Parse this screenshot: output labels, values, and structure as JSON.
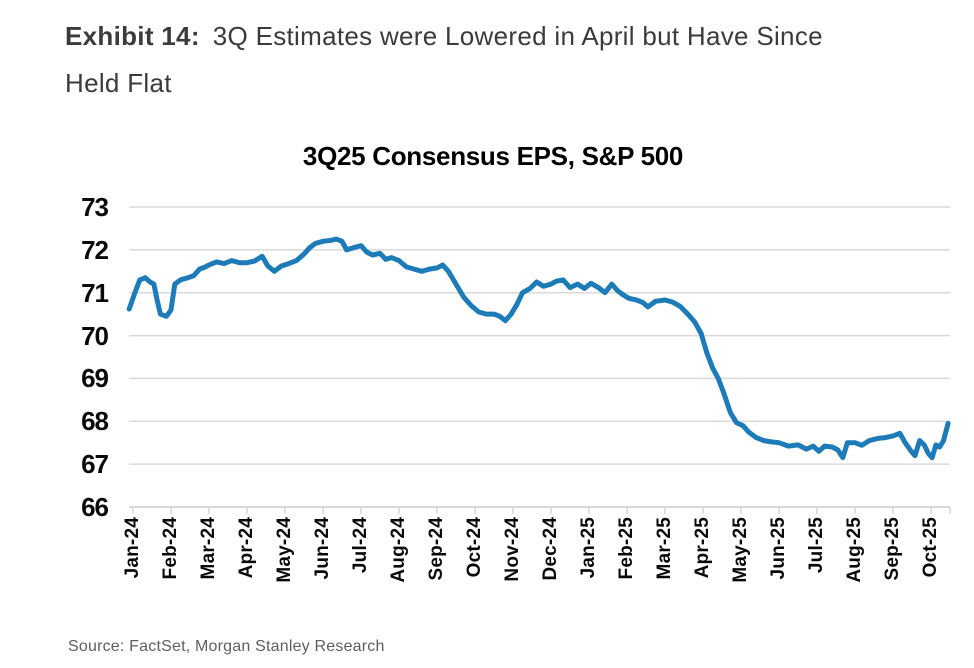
{
  "heading": {
    "label": "Exhibit 14:",
    "title": "3Q Estimates were Lowered in April but Have Since Held Flat",
    "title_lines": [
      "3Q Estimates were Lowered in April but Have Since",
      "Held Flat"
    ]
  },
  "source": "Source: FactSet, Morgan Stanley Research",
  "colors": {
    "line": "#1d7bb8",
    "grid": "#d9d9d9",
    "heading_text": "#3b3b39",
    "title_text": "#000000",
    "tick_text": "#0a0a0a",
    "source_text": "#5f5f5f"
  },
  "chart_data": {
    "type": "line",
    "title": "3Q25 Consensus EPS, S&P 500",
    "xlabel": "",
    "ylabel": "",
    "ylim": [
      66,
      73
    ],
    "y_ticks": [
      73,
      72,
      71,
      70,
      69,
      68,
      67,
      66
    ],
    "x_tick_labels": [
      "Jan-24",
      "Feb-24",
      "Mar-24",
      "Apr-24",
      "May-24",
      "Jun-24",
      "Jul-24",
      "Aug-24",
      "Sep-24",
      "Oct-24",
      "Nov-24",
      "Dec-24",
      "Jan-25",
      "Feb-25",
      "Mar-25",
      "Apr-25",
      "May-25",
      "Jun-25",
      "Jul-25",
      "Aug-25",
      "Sep-25",
      "Oct-25"
    ],
    "grid": "horizontal",
    "legend": "none",
    "series": [
      {
        "name": "3Q25 Consensus EPS, S&P 500",
        "color": "#1d7bb8",
        "x_unit": "months since Jan-24 tick",
        "points": [
          [
            -0.1,
            70.62
          ],
          [
            0.05,
            71.0
          ],
          [
            0.18,
            71.3
          ],
          [
            0.32,
            71.35
          ],
          [
            0.45,
            71.25
          ],
          [
            0.55,
            71.2
          ],
          [
            0.63,
            70.85
          ],
          [
            0.72,
            70.5
          ],
          [
            0.88,
            70.45
          ],
          [
            1.0,
            70.6
          ],
          [
            1.1,
            71.2
          ],
          [
            1.25,
            71.3
          ],
          [
            1.45,
            71.35
          ],
          [
            1.6,
            71.4
          ],
          [
            1.75,
            71.55
          ],
          [
            1.9,
            71.6
          ],
          [
            2.0,
            71.65
          ],
          [
            2.2,
            71.72
          ],
          [
            2.4,
            71.68
          ],
          [
            2.6,
            71.75
          ],
          [
            2.8,
            71.7
          ],
          [
            3.0,
            71.7
          ],
          [
            3.2,
            71.74
          ],
          [
            3.4,
            71.85
          ],
          [
            3.55,
            71.62
          ],
          [
            3.72,
            71.5
          ],
          [
            3.9,
            71.62
          ],
          [
            4.1,
            71.68
          ],
          [
            4.3,
            71.75
          ],
          [
            4.5,
            71.9
          ],
          [
            4.65,
            72.05
          ],
          [
            4.8,
            72.15
          ],
          [
            5.0,
            72.2
          ],
          [
            5.2,
            72.22
          ],
          [
            5.35,
            72.25
          ],
          [
            5.5,
            72.2
          ],
          [
            5.62,
            72.0
          ],
          [
            5.8,
            72.05
          ],
          [
            6.0,
            72.1
          ],
          [
            6.15,
            71.95
          ],
          [
            6.3,
            71.88
          ],
          [
            6.5,
            71.92
          ],
          [
            6.65,
            71.78
          ],
          [
            6.8,
            71.82
          ],
          [
            7.0,
            71.75
          ],
          [
            7.2,
            71.6
          ],
          [
            7.4,
            71.55
          ],
          [
            7.6,
            71.5
          ],
          [
            7.8,
            71.55
          ],
          [
            8.0,
            71.58
          ],
          [
            8.15,
            71.65
          ],
          [
            8.3,
            71.5
          ],
          [
            8.5,
            71.2
          ],
          [
            8.7,
            70.9
          ],
          [
            8.9,
            70.7
          ],
          [
            9.1,
            70.55
          ],
          [
            9.3,
            70.5
          ],
          [
            9.5,
            70.5
          ],
          [
            9.65,
            70.45
          ],
          [
            9.8,
            70.35
          ],
          [
            9.95,
            70.5
          ],
          [
            10.1,
            70.72
          ],
          [
            10.25,
            71.0
          ],
          [
            10.45,
            71.1
          ],
          [
            10.62,
            71.25
          ],
          [
            10.8,
            71.15
          ],
          [
            11.0,
            71.2
          ],
          [
            11.15,
            71.27
          ],
          [
            11.32,
            71.3
          ],
          [
            11.5,
            71.12
          ],
          [
            11.7,
            71.2
          ],
          [
            11.88,
            71.1
          ],
          [
            12.05,
            71.22
          ],
          [
            12.25,
            71.12
          ],
          [
            12.42,
            71.0
          ],
          [
            12.6,
            71.2
          ],
          [
            12.75,
            71.05
          ],
          [
            12.9,
            70.95
          ],
          [
            13.05,
            70.87
          ],
          [
            13.25,
            70.83
          ],
          [
            13.42,
            70.77
          ],
          [
            13.55,
            70.67
          ],
          [
            13.75,
            70.8
          ],
          [
            14.0,
            70.83
          ],
          [
            14.2,
            70.78
          ],
          [
            14.4,
            70.68
          ],
          [
            14.6,
            70.5
          ],
          [
            14.78,
            70.32
          ],
          [
            14.95,
            70.05
          ],
          [
            15.1,
            69.6
          ],
          [
            15.25,
            69.25
          ],
          [
            15.4,
            69.0
          ],
          [
            15.55,
            68.65
          ],
          [
            15.72,
            68.2
          ],
          [
            15.88,
            67.97
          ],
          [
            16.05,
            67.9
          ],
          [
            16.2,
            67.75
          ],
          [
            16.4,
            67.62
          ],
          [
            16.6,
            67.55
          ],
          [
            16.8,
            67.52
          ],
          [
            17.0,
            67.5
          ],
          [
            17.25,
            67.42
          ],
          [
            17.5,
            67.45
          ],
          [
            17.72,
            67.35
          ],
          [
            17.9,
            67.42
          ],
          [
            18.05,
            67.3
          ],
          [
            18.2,
            67.42
          ],
          [
            18.4,
            67.4
          ],
          [
            18.55,
            67.33
          ],
          [
            18.68,
            67.15
          ],
          [
            18.8,
            67.5
          ],
          [
            19.0,
            67.5
          ],
          [
            19.18,
            67.44
          ],
          [
            19.38,
            67.55
          ],
          [
            19.6,
            67.6
          ],
          [
            19.8,
            67.62
          ],
          [
            20.0,
            67.66
          ],
          [
            20.18,
            67.72
          ],
          [
            20.32,
            67.5
          ],
          [
            20.48,
            67.3
          ],
          [
            20.58,
            67.2
          ],
          [
            20.7,
            67.55
          ],
          [
            20.82,
            67.45
          ],
          [
            20.93,
            67.25
          ],
          [
            21.03,
            67.15
          ],
          [
            21.13,
            67.45
          ],
          [
            21.23,
            67.4
          ],
          [
            21.33,
            67.55
          ],
          [
            21.45,
            67.95
          ]
        ]
      }
    ]
  }
}
